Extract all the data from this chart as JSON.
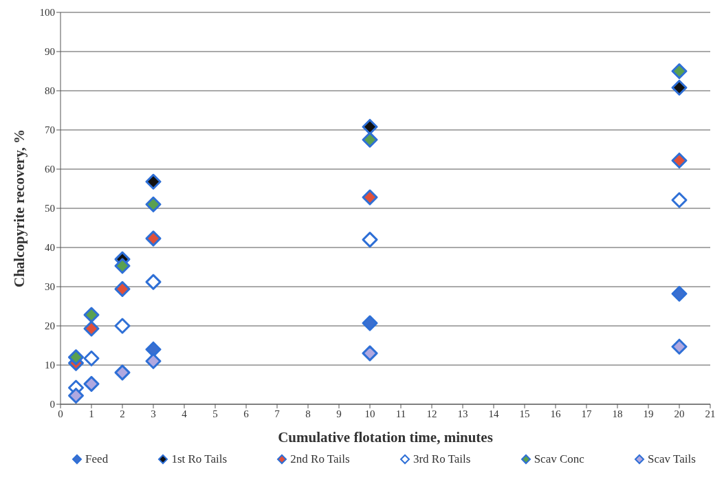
{
  "chart_data": {
    "type": "scatter",
    "xlabel": "Cumulative flotation time, minutes",
    "ylabel": "Chalcopyrite recovery, %",
    "x": [
      0.5,
      1,
      2,
      3,
      10,
      20
    ],
    "series": [
      {
        "name": "Feed",
        "color": "#3a6fd0",
        "values": [
          null,
          null,
          null,
          14,
          20.7,
          28.2
        ]
      },
      {
        "name": "1st Ro Tails",
        "color": "#111111",
        "values": [
          null,
          null,
          37,
          56.8,
          70.8,
          80.8
        ]
      },
      {
        "name": "2nd Ro Tails",
        "color": "#e0503a",
        "values": [
          10.5,
          19.3,
          29.4,
          42.3,
          52.8,
          62.2
        ]
      },
      {
        "name": "3rd Ro Tails",
        "color": "#ffffff",
        "values": [
          4.2,
          11.7,
          20,
          31.2,
          42,
          52.1
        ]
      },
      {
        "name": "Scav Conc",
        "color": "#5aa050",
        "values": [
          12,
          22.8,
          35.3,
          51,
          67.5,
          85
        ]
      },
      {
        "name": "Scav Tails",
        "color": "#b0a8e0",
        "values": [
          2.2,
          5.2,
          8.1,
          11,
          13,
          14.7
        ]
      }
    ],
    "xlim": [
      0,
      21
    ],
    "xticks": [
      0,
      1,
      2,
      3,
      4,
      5,
      6,
      7,
      8,
      9,
      10,
      11,
      12,
      13,
      14,
      15,
      16,
      17,
      18,
      19,
      20,
      21
    ],
    "ylim": [
      0,
      100
    ],
    "yticks": [
      0,
      10,
      20,
      30,
      40,
      50,
      60,
      70,
      80,
      90,
      100
    ],
    "grid": "y",
    "legend": "bottom",
    "marker": "diamond"
  }
}
